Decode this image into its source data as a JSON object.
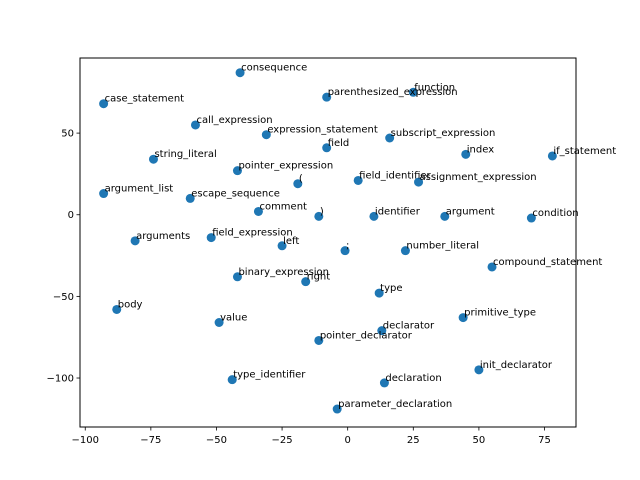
{
  "chart_data": {
    "type": "scatter",
    "title": "",
    "xlabel": "",
    "ylabel": "",
    "xlim": [
      -102,
      87
    ],
    "ylim": [
      -130,
      96
    ],
    "xticks": [
      -100,
      -75,
      -50,
      -25,
      0,
      25,
      50,
      75
    ],
    "yticks": [
      -100,
      -50,
      0,
      50
    ],
    "grid": false,
    "point_color": "#1f77b4",
    "points": [
      {
        "label": "consequence",
        "x": -41,
        "y": 87
      },
      {
        "label": "function",
        "x": 25,
        "y": 75
      },
      {
        "label": "parenthesized_expression",
        "x": -8,
        "y": 72
      },
      {
        "label": "case_statement",
        "x": -93,
        "y": 68
      },
      {
        "label": "call_expression",
        "x": -58,
        "y": 55
      },
      {
        "label": "expression_statement",
        "x": -31,
        "y": 49
      },
      {
        "label": "subscript_expression",
        "x": 16,
        "y": 47
      },
      {
        "label": "field",
        "x": -8,
        "y": 41
      },
      {
        "label": "index",
        "x": 45,
        "y": 37
      },
      {
        "label": "if_statement",
        "x": 78,
        "y": 36
      },
      {
        "label": "string_literal",
        "x": -74,
        "y": 34
      },
      {
        "label": "pointer_expression",
        "x": -42,
        "y": 27
      },
      {
        "label": "(",
        "x": -19,
        "y": 19
      },
      {
        "label": "field_identifier",
        "x": 4,
        "y": 21
      },
      {
        "label": "assignment_expression",
        "x": 27,
        "y": 20
      },
      {
        "label": "argument_list",
        "x": -93,
        "y": 13
      },
      {
        "label": "escape_sequence",
        "x": -60,
        "y": 10
      },
      {
        "label": "comment",
        "x": -34,
        "y": 2
      },
      {
        "label": ")",
        "x": -11,
        "y": -1
      },
      {
        "label": "identifier",
        "x": 10,
        "y": -1
      },
      {
        "label": "argument",
        "x": 37,
        "y": -1
      },
      {
        "label": "condition",
        "x": 70,
        "y": -2
      },
      {
        "label": "arguments",
        "x": -81,
        "y": -16
      },
      {
        "label": "field_expression",
        "x": -52,
        "y": -14
      },
      {
        "label": "left",
        "x": -25,
        "y": -19
      },
      {
        "label": ";",
        "x": -1,
        "y": -22
      },
      {
        "label": "number_literal",
        "x": 22,
        "y": -22
      },
      {
        "label": "compound_statement",
        "x": 55,
        "y": -32
      },
      {
        "label": "binary_expression",
        "x": -42,
        "y": -38
      },
      {
        "label": "right",
        "x": -16,
        "y": -41
      },
      {
        "label": "type",
        "x": 12,
        "y": -48
      },
      {
        "label": "body",
        "x": -88,
        "y": -58
      },
      {
        "label": "value",
        "x": -49,
        "y": -66
      },
      {
        "label": "primitive_type",
        "x": 44,
        "y": -63
      },
      {
        "label": "declarator",
        "x": 13,
        "y": -71
      },
      {
        "label": "pointer_declarator",
        "x": -11,
        "y": -77
      },
      {
        "label": "init_declarator",
        "x": 50,
        "y": -95
      },
      {
        "label": "type_identifier",
        "x": -44,
        "y": -101
      },
      {
        "label": "declaration",
        "x": 14,
        "y": -103
      },
      {
        "label": "parameter_declaration",
        "x": -4,
        "y": -119
      }
    ]
  }
}
